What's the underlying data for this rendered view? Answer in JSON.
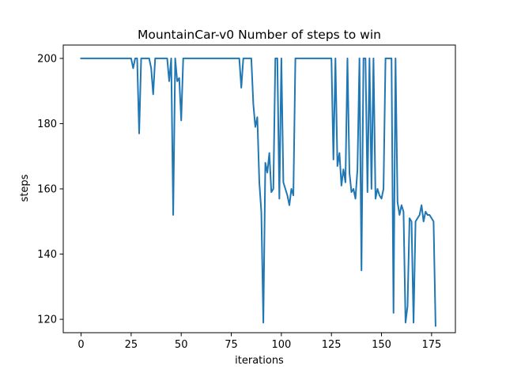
{
  "chart_data": {
    "type": "line",
    "title": "MountainCar-v0 Number of steps to win",
    "xlabel": "iterations",
    "ylabel": "steps",
    "xlim": [
      -8.9,
      186.9
    ],
    "ylim": [
      115.9,
      204.1
    ],
    "xticks": [
      0,
      25,
      50,
      75,
      100,
      125,
      150,
      175
    ],
    "yticks": [
      120,
      140,
      160,
      180,
      200
    ],
    "grid": false,
    "color": "#1f77b4",
    "series": [
      {
        "x": [
          0,
          1,
          2,
          3,
          4,
          5,
          6,
          7,
          8,
          9,
          10,
          11,
          12,
          13,
          14,
          15,
          16,
          17,
          18,
          19,
          20,
          21,
          22,
          23,
          24,
          25,
          26,
          27,
          28,
          29,
          30,
          31,
          32,
          33,
          34,
          35,
          36,
          37,
          38,
          39,
          40,
          41,
          42,
          43,
          44,
          45,
          46,
          47,
          48,
          49,
          50,
          51,
          52,
          53,
          54,
          55,
          56,
          57,
          58,
          59,
          60,
          61,
          62,
          63,
          64,
          65,
          66,
          67,
          68,
          69,
          70,
          71,
          72,
          73,
          74,
          75,
          76,
          77,
          78,
          79,
          80,
          81,
          82,
          83,
          84,
          85,
          86,
          87,
          88,
          89,
          90,
          91,
          92,
          93,
          94,
          95,
          96,
          97,
          98,
          99,
          100,
          101,
          102,
          103,
          104,
          105,
          106,
          107,
          108,
          109,
          110,
          111,
          112,
          113,
          114,
          115,
          116,
          117,
          118,
          119,
          120,
          121,
          122,
          123,
          124,
          125,
          126,
          127,
          128,
          129,
          130,
          131,
          132,
          133,
          134,
          135,
          136,
          137,
          138,
          139,
          140,
          141,
          142,
          143,
          144,
          145,
          146,
          147,
          148,
          149,
          150,
          151,
          152,
          153,
          154,
          155,
          156,
          157,
          158,
          159,
          160,
          161,
          162,
          163,
          164,
          165,
          166,
          167,
          168,
          169,
          170,
          171,
          172,
          173,
          174,
          175,
          176,
          177
        ],
        "y": [
          200,
          200,
          200,
          200,
          200,
          200,
          200,
          200,
          200,
          200,
          200,
          200,
          200,
          200,
          200,
          200,
          200,
          200,
          200,
          200,
          200,
          200,
          200,
          200,
          200,
          200,
          197,
          200,
          200,
          177,
          200,
          200,
          200,
          200,
          200,
          197,
          189,
          200,
          200,
          200,
          200,
          200,
          200,
          200,
          193,
          200,
          152,
          200,
          193,
          194,
          181,
          200,
          200,
          200,
          200,
          200,
          200,
          200,
          200,
          200,
          200,
          200,
          200,
          200,
          200,
          200,
          200,
          200,
          200,
          200,
          200,
          200,
          200,
          200,
          200,
          200,
          200,
          200,
          200,
          200,
          191,
          200,
          200,
          200,
          200,
          200,
          186,
          179,
          182,
          162,
          153,
          119,
          168,
          165,
          171,
          159,
          160,
          200,
          200,
          157,
          200,
          162,
          160,
          158,
          155,
          160,
          158,
          200,
          200,
          200,
          200,
          200,
          200,
          200,
          200,
          200,
          200,
          200,
          200,
          200,
          200,
          200,
          200,
          200,
          200,
          200,
          169,
          200,
          167,
          171,
          161,
          166,
          162,
          200,
          165,
          159,
          160,
          157,
          166,
          200,
          135,
          200,
          200,
          159,
          200,
          160,
          200,
          157,
          160,
          158,
          157,
          160,
          200,
          200,
          200,
          200,
          122,
          200,
          156,
          152,
          155,
          153,
          119,
          124,
          151,
          150,
          119,
          150,
          151,
          152,
          155,
          150,
          153,
          152,
          152,
          151,
          150,
          118
        ]
      }
    ]
  }
}
